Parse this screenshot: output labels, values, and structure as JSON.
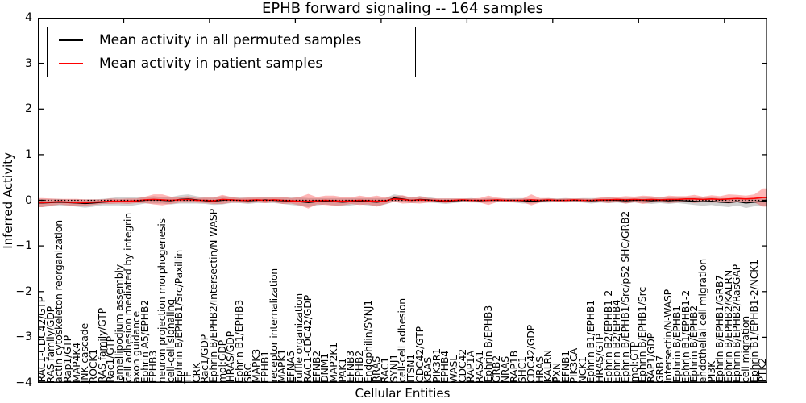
{
  "chart_data": {
    "type": "line",
    "title": "EPHB forward signaling -- 164 samples",
    "xlabel": "Cellular Entities",
    "ylabel": "Inferred Activity",
    "ylim": [
      -4,
      4
    ],
    "yticks": [
      4,
      3,
      2,
      1,
      0,
      -1,
      -2,
      -3,
      -4
    ],
    "xticks": [
      10,
      20,
      30,
      40,
      50,
      60,
      70,
      80
    ],
    "grid": false,
    "legend_position": "upper left",
    "zero_line": 0,
    "frame_color": "#000000",
    "categories": [
      "RAC1-CDC42/GTP",
      "RAS family/GDP",
      "actin cytoskeleton reorganization",
      "Rap1/GTP",
      "MAP4K4",
      "JNK cascade",
      "ROCK1",
      "RAS family/GTP",
      "Rac1/GTP",
      "lamellipodium assembly",
      "cell adhesion mediated by integrin",
      "axon guidance",
      "Ephrin A5/EPHB2",
      "EPHB3",
      "neuron projection morphogenesis",
      "cell-cell signaling",
      "Ephrin B/EPHB1/Src/Paxillin",
      "TF",
      "CRK",
      "Rac1/GDP",
      "Ephrin B/EPHB2/Intersectin/N-WASP",
      "mol:GDP",
      "HRAS/GDP",
      "Ephrin B1/EPHB3",
      "SRC",
      "MAPK3",
      "EPHB1",
      "receptor internalization",
      "MAPK1",
      "EFNA5",
      "ruffle organization",
      "RAC1-CDC42/GDP",
      "EFNB2",
      "DNM1",
      "MAP2K1",
      "PAK1",
      "EFNB3",
      "EPHB2",
      "Endophilin/SYNJ1",
      "RRAS",
      "RAC1",
      "SYNJ1",
      "cell-cell adhesion",
      "ITSN1",
      "CDC42/GTP",
      "KRAS",
      "PIK3R1",
      "EPHB4",
      "WASL",
      "CDC42",
      "RAP1A",
      "RASA1",
      "Ephrin B/EPHB3",
      "GRB2",
      "NRAS",
      "RAP1B",
      "SHC1",
      "CDC42/GDP",
      "HRAS",
      "KALRN",
      "PXN",
      "EFNB1",
      "PIK3CA",
      "NCK1",
      "Ephrin B1/EPHB1",
      "HRAS/GTP",
      "Ephrin B2/EPHB1-2",
      "Ephrin B2/EPHB4",
      "Ephrin B/EPHB1/Src/p52 SHC/GRB2",
      "mol:GTP",
      "Ephrin B/EPHB1/Src",
      "RAP1/GDP",
      "GRB7",
      "Intersectin/N-WASP",
      "Ephrin B/EPHB1",
      "Ephrin B1/EPHB1-2",
      "Ephrin B/EPHB2",
      "endothelial cell migration",
      "PI3K",
      "Ephrin B/EPHB1/GRB7",
      "Ephrin B/EPHB2/KALRN",
      "Ephrin B/EPHB2/RasGAP",
      "cell migration",
      "Ephrin B1/EPHB1-2/NCK1",
      "PTK2"
    ],
    "series": [
      {
        "name": "permuted",
        "legend_label": "Mean activity in all permuted samples",
        "color": "#000000",
        "band_color": "#999999",
        "band_opacity": 0.45,
        "values": [
          -0.06,
          -0.05,
          -0.04,
          -0.05,
          -0.06,
          -0.07,
          -0.06,
          -0.04,
          -0.03,
          -0.02,
          -0.03,
          -0.02,
          0.0,
          0.01,
          0.0,
          -0.01,
          0.02,
          0.03,
          0.01,
          -0.01,
          -0.02,
          0.0,
          0.01,
          0.0,
          -0.01,
          0.0,
          0.01,
          0.0,
          -0.01,
          -0.02,
          -0.03,
          -0.05,
          -0.03,
          -0.02,
          -0.03,
          -0.04,
          -0.03,
          -0.02,
          -0.03,
          -0.04,
          -0.02,
          0.05,
          0.03,
          0.0,
          0.02,
          0.01,
          -0.01,
          -0.02,
          -0.01,
          0.0,
          0.0,
          -0.01,
          0.0,
          0.0,
          0.0,
          0.0,
          -0.01,
          -0.02,
          -0.01,
          0.0,
          0.0,
          0.0,
          0.0,
          0.0,
          -0.01,
          0.0,
          0.0,
          0.0,
          -0.01,
          0.0,
          0.0,
          -0.01,
          0.0,
          -0.01,
          0.0,
          -0.01,
          -0.02,
          -0.03,
          -0.02,
          -0.04,
          -0.05,
          -0.03,
          -0.06,
          -0.04,
          -0.02
        ],
        "band": [
          0.09,
          0.08,
          0.07,
          0.07,
          0.08,
          0.09,
          0.08,
          0.07,
          0.08,
          0.09,
          0.1,
          0.08,
          0.07,
          0.08,
          0.07,
          0.08,
          0.09,
          0.1,
          0.08,
          0.07,
          0.08,
          0.09,
          0.07,
          0.06,
          0.07,
          0.06,
          0.07,
          0.06,
          0.07,
          0.08,
          0.09,
          0.1,
          0.08,
          0.07,
          0.08,
          0.09,
          0.08,
          0.07,
          0.08,
          0.09,
          0.07,
          0.08,
          0.07,
          0.06,
          0.07,
          0.06,
          0.05,
          0.06,
          0.05,
          0.04,
          0.05,
          0.04,
          0.05,
          0.04,
          0.04,
          0.05,
          0.06,
          0.05,
          0.04,
          0.05,
          0.04,
          0.05,
          0.04,
          0.05,
          0.06,
          0.05,
          0.06,
          0.05,
          0.06,
          0.05,
          0.06,
          0.07,
          0.06,
          0.07,
          0.06,
          0.07,
          0.08,
          0.09,
          0.08,
          0.09,
          0.1,
          0.08,
          0.11,
          0.09,
          0.1
        ]
      },
      {
        "name": "patient",
        "legend_label": "Mean activity in patient samples",
        "color": "#ff0000",
        "band_color": "#ff2222",
        "band_opacity": 0.33,
        "values": [
          -0.05,
          -0.04,
          -0.03,
          -0.04,
          -0.05,
          -0.05,
          -0.04,
          -0.03,
          -0.02,
          -0.02,
          -0.02,
          -0.01,
          0.01,
          0.02,
          0.01,
          0.0,
          0.01,
          0.02,
          0.0,
          0.0,
          -0.01,
          0.02,
          0.01,
          0.0,
          0.0,
          0.01,
          0.0,
          0.01,
          0.0,
          -0.01,
          -0.02,
          -0.02,
          -0.01,
          0.0,
          -0.01,
          -0.02,
          -0.01,
          0.0,
          -0.01,
          -0.02,
          -0.01,
          0.03,
          0.02,
          0.0,
          0.01,
          0.0,
          0.0,
          -0.01,
          0.0,
          0.01,
          0.0,
          0.0,
          0.0,
          0.01,
          0.0,
          0.0,
          0.0,
          0.01,
          0.0,
          0.01,
          0.0,
          0.0,
          0.01,
          0.0,
          0.0,
          0.01,
          0.01,
          0.02,
          0.01,
          0.02,
          0.01,
          0.02,
          0.01,
          0.02,
          0.02,
          0.03,
          0.03,
          0.02,
          0.03,
          0.02,
          0.03,
          0.04,
          0.03,
          0.04,
          0.06
        ],
        "band": [
          0.1,
          0.08,
          0.06,
          0.07,
          0.08,
          0.07,
          0.06,
          0.05,
          0.06,
          0.05,
          0.06,
          0.05,
          0.07,
          0.11,
          0.12,
          0.08,
          0.06,
          0.07,
          0.05,
          0.06,
          0.07,
          0.1,
          0.06,
          0.05,
          0.06,
          0.05,
          0.06,
          0.05,
          0.08,
          0.06,
          0.09,
          0.16,
          0.08,
          0.1,
          0.11,
          0.09,
          0.07,
          0.1,
          0.08,
          0.12,
          0.07,
          0.06,
          0.09,
          0.06,
          0.08,
          0.05,
          0.04,
          0.05,
          0.04,
          0.03,
          0.04,
          0.05,
          0.1,
          0.05,
          0.04,
          0.03,
          0.04,
          0.12,
          0.05,
          0.04,
          0.03,
          0.04,
          0.03,
          0.04,
          0.03,
          0.05,
          0.07,
          0.05,
          0.08,
          0.06,
          0.09,
          0.07,
          0.05,
          0.08,
          0.07,
          0.06,
          0.09,
          0.06,
          0.08,
          0.07,
          0.1,
          0.08,
          0.07,
          0.09,
          0.2
        ]
      }
    ]
  }
}
